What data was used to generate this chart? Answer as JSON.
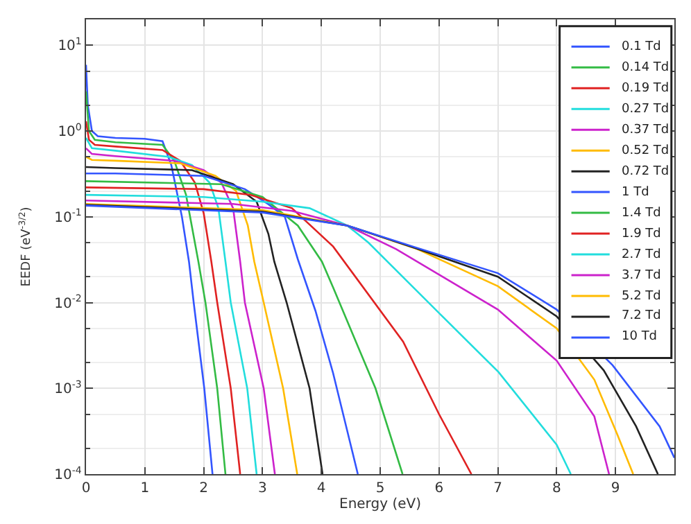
{
  "chart_data": {
    "type": "line",
    "xlabel": "Energy (eV)",
    "ylabel": "EEDF (eV$^{-3/2}$)",
    "xlim": [
      0,
      10
    ],
    "xticks": [
      0,
      1,
      2,
      3,
      4,
      5,
      6,
      7,
      8,
      9
    ],
    "ylim": [
      0.0001,
      20
    ],
    "log": "y",
    "yticks": [
      {
        "value": 0.0001,
        "label": "10$^{-4}$"
      },
      {
        "value": 0.001,
        "label": "10$^{-3}$"
      },
      {
        "value": 0.01,
        "label": "10$^{-2}$"
      },
      {
        "value": 0.1,
        "label": "10$^{-1}$"
      },
      {
        "value": 1,
        "label": "10$^{0}$"
      },
      {
        "value": 10,
        "label": "10$^{1}$"
      }
    ],
    "grid": true,
    "legend": "top right",
    "marker": "none",
    "line_style": "solid",
    "series": [
      {
        "name": "0.1 Td",
        "color": "#3355ff",
        "x": [
          0,
          0.03,
          0.1,
          0.2,
          0.5,
          1.0,
          1.3,
          1.45,
          1.63,
          1.75,
          1.83,
          2.01,
          2.15
        ],
        "values": [
          5.9,
          2.0,
          1.0,
          0.87,
          0.83,
          0.81,
          0.76,
          0.4,
          0.1,
          0.03,
          0.01,
          0.001,
          0.0001
        ]
      },
      {
        "name": "0.14 Td",
        "color": "#33bb44",
        "x": [
          0,
          0.05,
          0.15,
          0.5,
          1.3,
          1.5,
          1.7,
          1.91,
          2.03,
          2.23,
          2.37
        ],
        "values": [
          2.9,
          1.0,
          0.79,
          0.74,
          0.69,
          0.45,
          0.18,
          0.03,
          0.01,
          0.001,
          0.0001
        ]
      },
      {
        "name": "0.19 Td",
        "color": "#e02222",
        "x": [
          0,
          0.05,
          0.15,
          0.5,
          1.3,
          1.6,
          1.85,
          2.0,
          2.13,
          2.23,
          2.46,
          2.62
        ],
        "values": [
          1.3,
          0.79,
          0.69,
          0.66,
          0.6,
          0.45,
          0.25,
          0.11,
          0.03,
          0.01,
          0.001,
          0.0001
        ]
      },
      {
        "name": "0.27 Td",
        "color": "#22dddd",
        "x": [
          0,
          0.1,
          0.5,
          1.4,
          1.8,
          2.1,
          2.25,
          2.37,
          2.46,
          2.74,
          2.9
        ],
        "values": [
          0.83,
          0.63,
          0.59,
          0.5,
          0.4,
          0.25,
          0.126,
          0.03,
          0.01,
          0.001,
          0.0001
        ]
      },
      {
        "name": "0.37 Td",
        "color": "#cc22cc",
        "x": [
          0,
          0.1,
          0.5,
          1.5,
          2.0,
          2.3,
          2.5,
          2.62,
          2.7,
          3.02,
          3.21
        ],
        "values": [
          0.63,
          0.54,
          0.51,
          0.45,
          0.35,
          0.25,
          0.126,
          0.03,
          0.01,
          0.001,
          0.0001
        ]
      },
      {
        "name": "0.52 Td",
        "color": "#ffbb00",
        "x": [
          0,
          0.1,
          0.5,
          1.6,
          2.2,
          2.55,
          2.75,
          2.86,
          3.02,
          3.35,
          3.59
        ],
        "values": [
          0.5,
          0.46,
          0.45,
          0.42,
          0.3,
          0.2,
          0.079,
          0.03,
          0.01,
          0.001,
          0.0001
        ]
      },
      {
        "name": "0.72 Td",
        "color": "#222222",
        "x": [
          0,
          0.5,
          1.8,
          2.5,
          2.9,
          3.1,
          3.2,
          3.41,
          3.8,
          4.02
        ],
        "values": [
          0.38,
          0.37,
          0.35,
          0.24,
          0.15,
          0.063,
          0.03,
          0.01,
          0.001,
          0.0001
        ]
      },
      {
        "name": "1 Td",
        "color": "#3355ff",
        "x": [
          0,
          0.5,
          2.0,
          2.7,
          3.1,
          3.38,
          3.6,
          3.9,
          4.2,
          4.62
        ],
        "values": [
          0.32,
          0.32,
          0.3,
          0.21,
          0.14,
          0.1,
          0.032,
          0.008,
          0.0015,
          0.0001
        ]
      },
      {
        "name": "1.4 Td",
        "color": "#33bb44",
        "x": [
          0,
          2.3,
          3.0,
          3.6,
          4.01,
          4.2,
          4.92,
          5.38
        ],
        "values": [
          0.26,
          0.24,
          0.17,
          0.079,
          0.03,
          0.015,
          0.001,
          0.0001
        ]
      },
      {
        "name": "1.9 Td",
        "color": "#e02222",
        "x": [
          0,
          2.0,
          2.8,
          3.5,
          4.2,
          5.39,
          6.0,
          6.55
        ],
        "values": [
          0.22,
          0.21,
          0.18,
          0.126,
          0.045,
          0.0035,
          0.0005,
          0.0001
        ]
      },
      {
        "name": "2.7 Td",
        "color": "#22dddd",
        "x": [
          0,
          2.0,
          3.0,
          3.8,
          4.44,
          4.8,
          6.03,
          7.01,
          8.0,
          8.24
        ],
        "values": [
          0.18,
          0.17,
          0.15,
          0.126,
          0.079,
          0.05,
          0.0072,
          0.00155,
          0.00022,
          0.0001
        ]
      },
      {
        "name": "3.7 Td",
        "color": "#cc22cc",
        "x": [
          0,
          2.5,
          3.5,
          4.44,
          5.27,
          7.0,
          8.0,
          8.64,
          8.89
        ],
        "values": [
          0.155,
          0.141,
          0.117,
          0.079,
          0.042,
          0.0083,
          0.0021,
          0.00047,
          0.0001
        ]
      },
      {
        "name": "5.2 Td",
        "color": "#ffbb00",
        "x": [
          0,
          3,
          4.44,
          5.63,
          7,
          8,
          8.64,
          9.03,
          9.3
        ],
        "values": [
          0.141,
          0.12,
          0.079,
          0.042,
          0.0155,
          0.005,
          0.00126,
          0.00029,
          0.0001
        ]
      },
      {
        "name": "7.2 Td",
        "color": "#222222",
        "x": [
          0,
          3,
          4.44,
          5.6,
          7,
          8,
          8.8,
          9.35,
          9.72
        ],
        "values": [
          0.138,
          0.115,
          0.079,
          0.043,
          0.02,
          0.0069,
          0.00162,
          0.00036,
          0.0001
        ]
      },
      {
        "name": "10 Td",
        "color": "#3355ff",
        "x": [
          0,
          3,
          4.44,
          5.6,
          7,
          8,
          8.95,
          9.75,
          10
        ],
        "values": [
          0.135,
          0.112,
          0.079,
          0.044,
          0.022,
          0.0083,
          0.00186,
          0.00036,
          0.000155
        ]
      }
    ]
  }
}
